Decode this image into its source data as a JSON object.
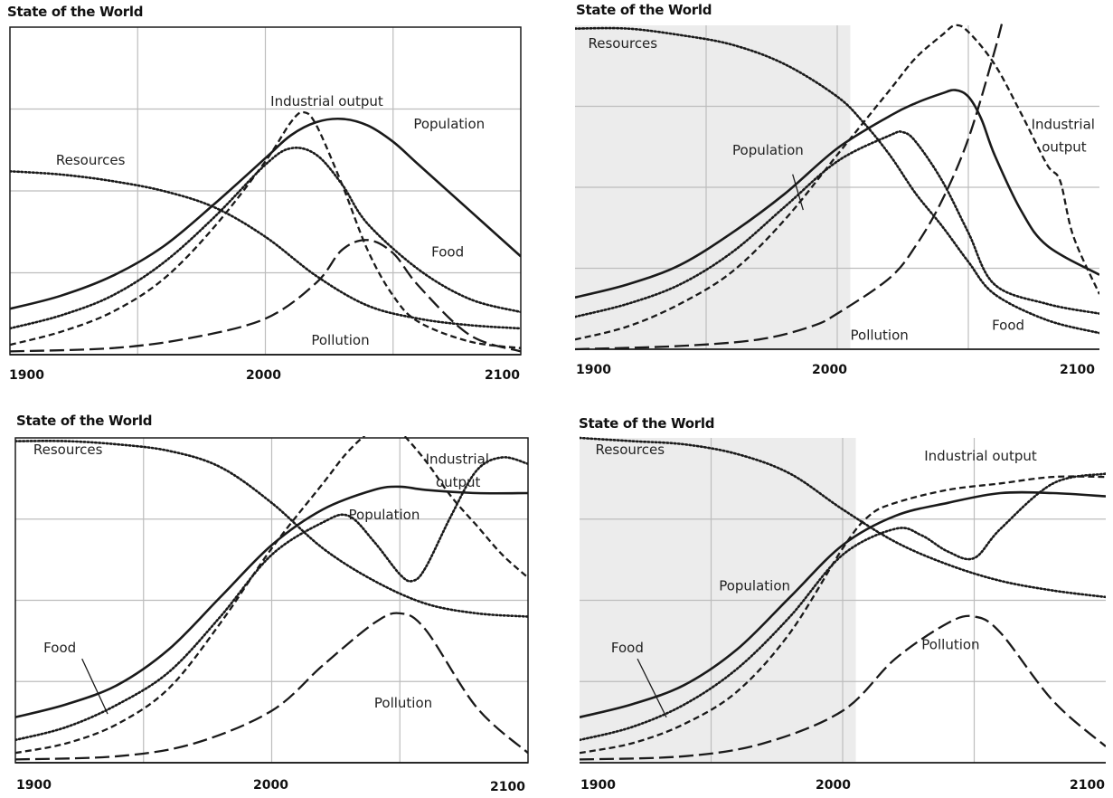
{
  "chart_data": [
    {
      "type": "line",
      "title": "State of the World",
      "xlabel": "",
      "ylabel": "",
      "xlim": [
        1900,
        2100
      ],
      "x_ticks": [
        "1900",
        "2000",
        "2100"
      ],
      "grid": true,
      "shaded_until": null,
      "series": [
        {
          "name": "Population",
          "style": "solid",
          "x": [
            1900,
            1920,
            1940,
            1960,
            1980,
            2000,
            2010,
            2020,
            2030,
            2040,
            2050,
            2060,
            2080,
            2100
          ],
          "y": [
            0.14,
            0.18,
            0.24,
            0.33,
            0.46,
            0.6,
            0.67,
            0.71,
            0.72,
            0.7,
            0.65,
            0.58,
            0.44,
            0.3
          ]
        },
        {
          "name": "Industrial output",
          "style": "short-dash",
          "x": [
            1900,
            1920,
            1940,
            1960,
            1980,
            2000,
            2010,
            2015,
            2020,
            2030,
            2040,
            2050,
            2060,
            2080,
            2100
          ],
          "y": [
            0.03,
            0.07,
            0.13,
            0.23,
            0.39,
            0.59,
            0.71,
            0.74,
            0.7,
            0.52,
            0.32,
            0.18,
            0.1,
            0.04,
            0.02
          ]
        },
        {
          "name": "Food",
          "style": "dotted",
          "x": [
            1900,
            1920,
            1940,
            1960,
            1980,
            2000,
            2010,
            2020,
            2030,
            2040,
            2060,
            2080,
            2100
          ],
          "y": [
            0.08,
            0.12,
            0.18,
            0.28,
            0.42,
            0.58,
            0.63,
            0.61,
            0.52,
            0.4,
            0.26,
            0.17,
            0.13
          ]
        },
        {
          "name": "Resources",
          "style": "dotted",
          "x": [
            1900,
            1920,
            1940,
            1960,
            1980,
            2000,
            2020,
            2040,
            2060,
            2080,
            2100
          ],
          "y": [
            0.56,
            0.55,
            0.53,
            0.5,
            0.45,
            0.36,
            0.24,
            0.15,
            0.11,
            0.09,
            0.08
          ]
        },
        {
          "name": "Pollution",
          "style": "long-dash",
          "x": [
            1900,
            1940,
            1970,
            2000,
            2020,
            2030,
            2040,
            2050,
            2060,
            2080,
            2100
          ],
          "y": [
            0.01,
            0.02,
            0.05,
            0.11,
            0.22,
            0.32,
            0.35,
            0.31,
            0.21,
            0.06,
            0.01
          ]
        }
      ],
      "annotations": [
        {
          "text": "Industrial output",
          "x": 2002,
          "y": 0.76
        },
        {
          "text": "Population",
          "x": 2058,
          "y": 0.69
        },
        {
          "text": "Resources",
          "x": 1918,
          "y": 0.58
        },
        {
          "text": "Food",
          "x": 2065,
          "y": 0.3
        },
        {
          "text": "Pollution",
          "x": 2018,
          "y": 0.03
        }
      ]
    },
    {
      "type": "line",
      "title": "State of the World",
      "xlabel": "",
      "ylabel": "",
      "xlim": [
        1900,
        2100
      ],
      "x_ticks": [
        "1900",
        "2000",
        "2100"
      ],
      "grid": true,
      "shaded_until": 2005,
      "series": [
        {
          "name": "Population",
          "style": "solid",
          "x": [
            1900,
            1920,
            1940,
            1960,
            1980,
            2000,
            2020,
            2030,
            2040,
            2045,
            2050,
            2055,
            2060,
            2070,
            2080,
            2100
          ],
          "y": [
            0.16,
            0.2,
            0.26,
            0.36,
            0.48,
            0.62,
            0.72,
            0.76,
            0.79,
            0.8,
            0.78,
            0.71,
            0.6,
            0.43,
            0.32,
            0.23
          ]
        },
        {
          "name": "Industrial output",
          "style": "short-dash",
          "x": [
            1900,
            1920,
            1940,
            1960,
            1980,
            2000,
            2020,
            2030,
            2040,
            2045,
            2050,
            2060,
            2070,
            2080,
            2085,
            2090,
            2100
          ],
          "y": [
            0.03,
            0.07,
            0.14,
            0.24,
            0.4,
            0.6,
            0.8,
            0.9,
            0.97,
            1.0,
            0.98,
            0.88,
            0.73,
            0.57,
            0.52,
            0.35,
            0.17
          ]
        },
        {
          "name": "Food",
          "style": "dotted",
          "x": [
            1900,
            1920,
            1940,
            1960,
            1980,
            2000,
            2020,
            2025,
            2030,
            2040,
            2050,
            2060,
            2080,
            2100
          ],
          "y": [
            0.1,
            0.14,
            0.2,
            0.3,
            0.44,
            0.58,
            0.66,
            0.67,
            0.64,
            0.52,
            0.36,
            0.2,
            0.14,
            0.11
          ]
        },
        {
          "name": "Resources",
          "style": "dotted",
          "x": [
            1900,
            1920,
            1940,
            1960,
            1980,
            2000,
            2010,
            2020,
            2030,
            2040,
            2050,
            2060,
            2080,
            2100
          ],
          "y": [
            0.99,
            0.99,
            0.97,
            0.94,
            0.88,
            0.78,
            0.7,
            0.6,
            0.48,
            0.38,
            0.27,
            0.17,
            0.09,
            0.05
          ]
        },
        {
          "name": "Pollution",
          "style": "long-dash",
          "x": [
            1900,
            1940,
            1970,
            1990,
            2000,
            2020,
            2030,
            2040,
            2050,
            2060,
            2065
          ],
          "y": [
            0.0,
            0.01,
            0.03,
            0.07,
            0.11,
            0.22,
            0.32,
            0.46,
            0.65,
            0.92,
            1.08
          ]
        }
      ],
      "annotations": [
        {
          "text": "Resources",
          "x": 1905,
          "y": 0.93
        },
        {
          "text": "Industrial",
          "x": 2074,
          "y": 0.68
        },
        {
          "text": "output",
          "x": 2078,
          "y": 0.61
        },
        {
          "text": "Population",
          "x": 1960,
          "y": 0.6
        },
        {
          "text": "Pollution",
          "x": 2005,
          "y": 0.03
        },
        {
          "text": "Food",
          "x": 2059,
          "y": 0.06
        }
      ]
    },
    {
      "type": "line",
      "title": "State of the World",
      "xlabel": "",
      "ylabel": "",
      "xlim": [
        1900,
        2100
      ],
      "x_ticks": [
        "1900",
        "2000",
        "2100"
      ],
      "grid": true,
      "shaded_until": null,
      "series": [
        {
          "name": "Population",
          "style": "solid",
          "x": [
            1900,
            1920,
            1940,
            1960,
            1980,
            2000,
            2020,
            2040,
            2050,
            2060,
            2080,
            2100
          ],
          "y": [
            0.14,
            0.18,
            0.24,
            0.35,
            0.51,
            0.67,
            0.78,
            0.84,
            0.85,
            0.84,
            0.83,
            0.83
          ]
        },
        {
          "name": "Industrial output",
          "style": "short-dash",
          "x": [
            1900,
            1920,
            1940,
            1960,
            1980,
            2000,
            2020,
            2030,
            2040,
            2045,
            2050,
            2060,
            2070,
            2080,
            2090,
            2100
          ],
          "y": [
            0.03,
            0.06,
            0.12,
            0.23,
            0.43,
            0.66,
            0.86,
            0.96,
            1.03,
            1.04,
            1.02,
            0.93,
            0.82,
            0.73,
            0.64,
            0.57
          ]
        },
        {
          "name": "Food",
          "style": "dotted",
          "x": [
            1900,
            1920,
            1940,
            1960,
            1980,
            2000,
            2020,
            2030,
            2040,
            2050,
            2055,
            2060,
            2070,
            2080,
            2090,
            2100
          ],
          "y": [
            0.07,
            0.11,
            0.18,
            0.28,
            0.45,
            0.64,
            0.74,
            0.76,
            0.68,
            0.58,
            0.56,
            0.6,
            0.76,
            0.9,
            0.94,
            0.92
          ]
        },
        {
          "name": "Resources",
          "style": "dotted",
          "x": [
            1900,
            1920,
            1940,
            1960,
            1980,
            2000,
            2020,
            2040,
            2060,
            2080,
            2100
          ],
          "y": [
            0.99,
            0.99,
            0.98,
            0.96,
            0.91,
            0.8,
            0.66,
            0.56,
            0.49,
            0.46,
            0.45
          ]
        },
        {
          "name": "Pollution",
          "style": "long-dash",
          "x": [
            1900,
            1940,
            1970,
            2000,
            2020,
            2040,
            2050,
            2060,
            2080,
            2100
          ],
          "y": [
            0.01,
            0.02,
            0.06,
            0.16,
            0.3,
            0.43,
            0.46,
            0.41,
            0.17,
            0.03
          ]
        }
      ],
      "annotations": [
        {
          "text": "Resources",
          "x": 1907,
          "y": 0.95
        },
        {
          "text": "Industrial",
          "x": 2060,
          "y": 0.92
        },
        {
          "text": "output",
          "x": 2064,
          "y": 0.85
        },
        {
          "text": "Population",
          "x": 2030,
          "y": 0.75
        },
        {
          "text": "Food",
          "x": 1911,
          "y": 0.34
        },
        {
          "text": "Pollution",
          "x": 2040,
          "y": 0.17
        }
      ]
    },
    {
      "type": "line",
      "title": "State of the World",
      "xlabel": "",
      "ylabel": "",
      "xlim": [
        1900,
        2100
      ],
      "x_ticks": [
        "1900",
        "2000",
        "2100"
      ],
      "grid": true,
      "shaded_until": 2005,
      "series": [
        {
          "name": "Population",
          "style": "solid",
          "x": [
            1900,
            1920,
            1940,
            1960,
            1980,
            2000,
            2020,
            2040,
            2060,
            2080,
            2100
          ],
          "y": [
            0.14,
            0.18,
            0.24,
            0.35,
            0.51,
            0.67,
            0.76,
            0.8,
            0.83,
            0.83,
            0.82
          ]
        },
        {
          "name": "Industrial output",
          "style": "short-dash",
          "x": [
            1900,
            1920,
            1940,
            1960,
            1980,
            2000,
            2010,
            2020,
            2040,
            2060,
            2080,
            2100
          ],
          "y": [
            0.03,
            0.06,
            0.12,
            0.22,
            0.4,
            0.66,
            0.76,
            0.8,
            0.84,
            0.86,
            0.88,
            0.88
          ]
        },
        {
          "name": "Food",
          "style": "dotted",
          "x": [
            1900,
            1920,
            1940,
            1960,
            1980,
            2000,
            2020,
            2030,
            2040,
            2050,
            2060,
            2080,
            2100
          ],
          "y": [
            0.07,
            0.11,
            0.18,
            0.29,
            0.45,
            0.64,
            0.72,
            0.7,
            0.65,
            0.63,
            0.72,
            0.86,
            0.89
          ]
        },
        {
          "name": "Resources",
          "style": "dotted",
          "x": [
            1900,
            1920,
            1940,
            1960,
            1980,
            2000,
            2020,
            2040,
            2060,
            2080,
            2100
          ],
          "y": [
            1.0,
            0.99,
            0.98,
            0.95,
            0.89,
            0.78,
            0.68,
            0.61,
            0.56,
            0.53,
            0.51
          ]
        },
        {
          "name": "Pollution",
          "style": "long-dash",
          "x": [
            1900,
            1940,
            1970,
            2000,
            2020,
            2040,
            2050,
            2060,
            2080,
            2100
          ],
          "y": [
            0.01,
            0.02,
            0.06,
            0.16,
            0.32,
            0.43,
            0.45,
            0.4,
            0.19,
            0.05
          ]
        }
      ],
      "annotations": [
        {
          "text": "Resources",
          "x": 1906,
          "y": 0.95
        },
        {
          "text": "Industrial output",
          "x": 2031,
          "y": 0.93
        },
        {
          "text": "Population",
          "x": 1953,
          "y": 0.53
        },
        {
          "text": "Food",
          "x": 1912,
          "y": 0.34
        },
        {
          "text": "Pollution",
          "x": 2030,
          "y": 0.35
        }
      ]
    }
  ]
}
